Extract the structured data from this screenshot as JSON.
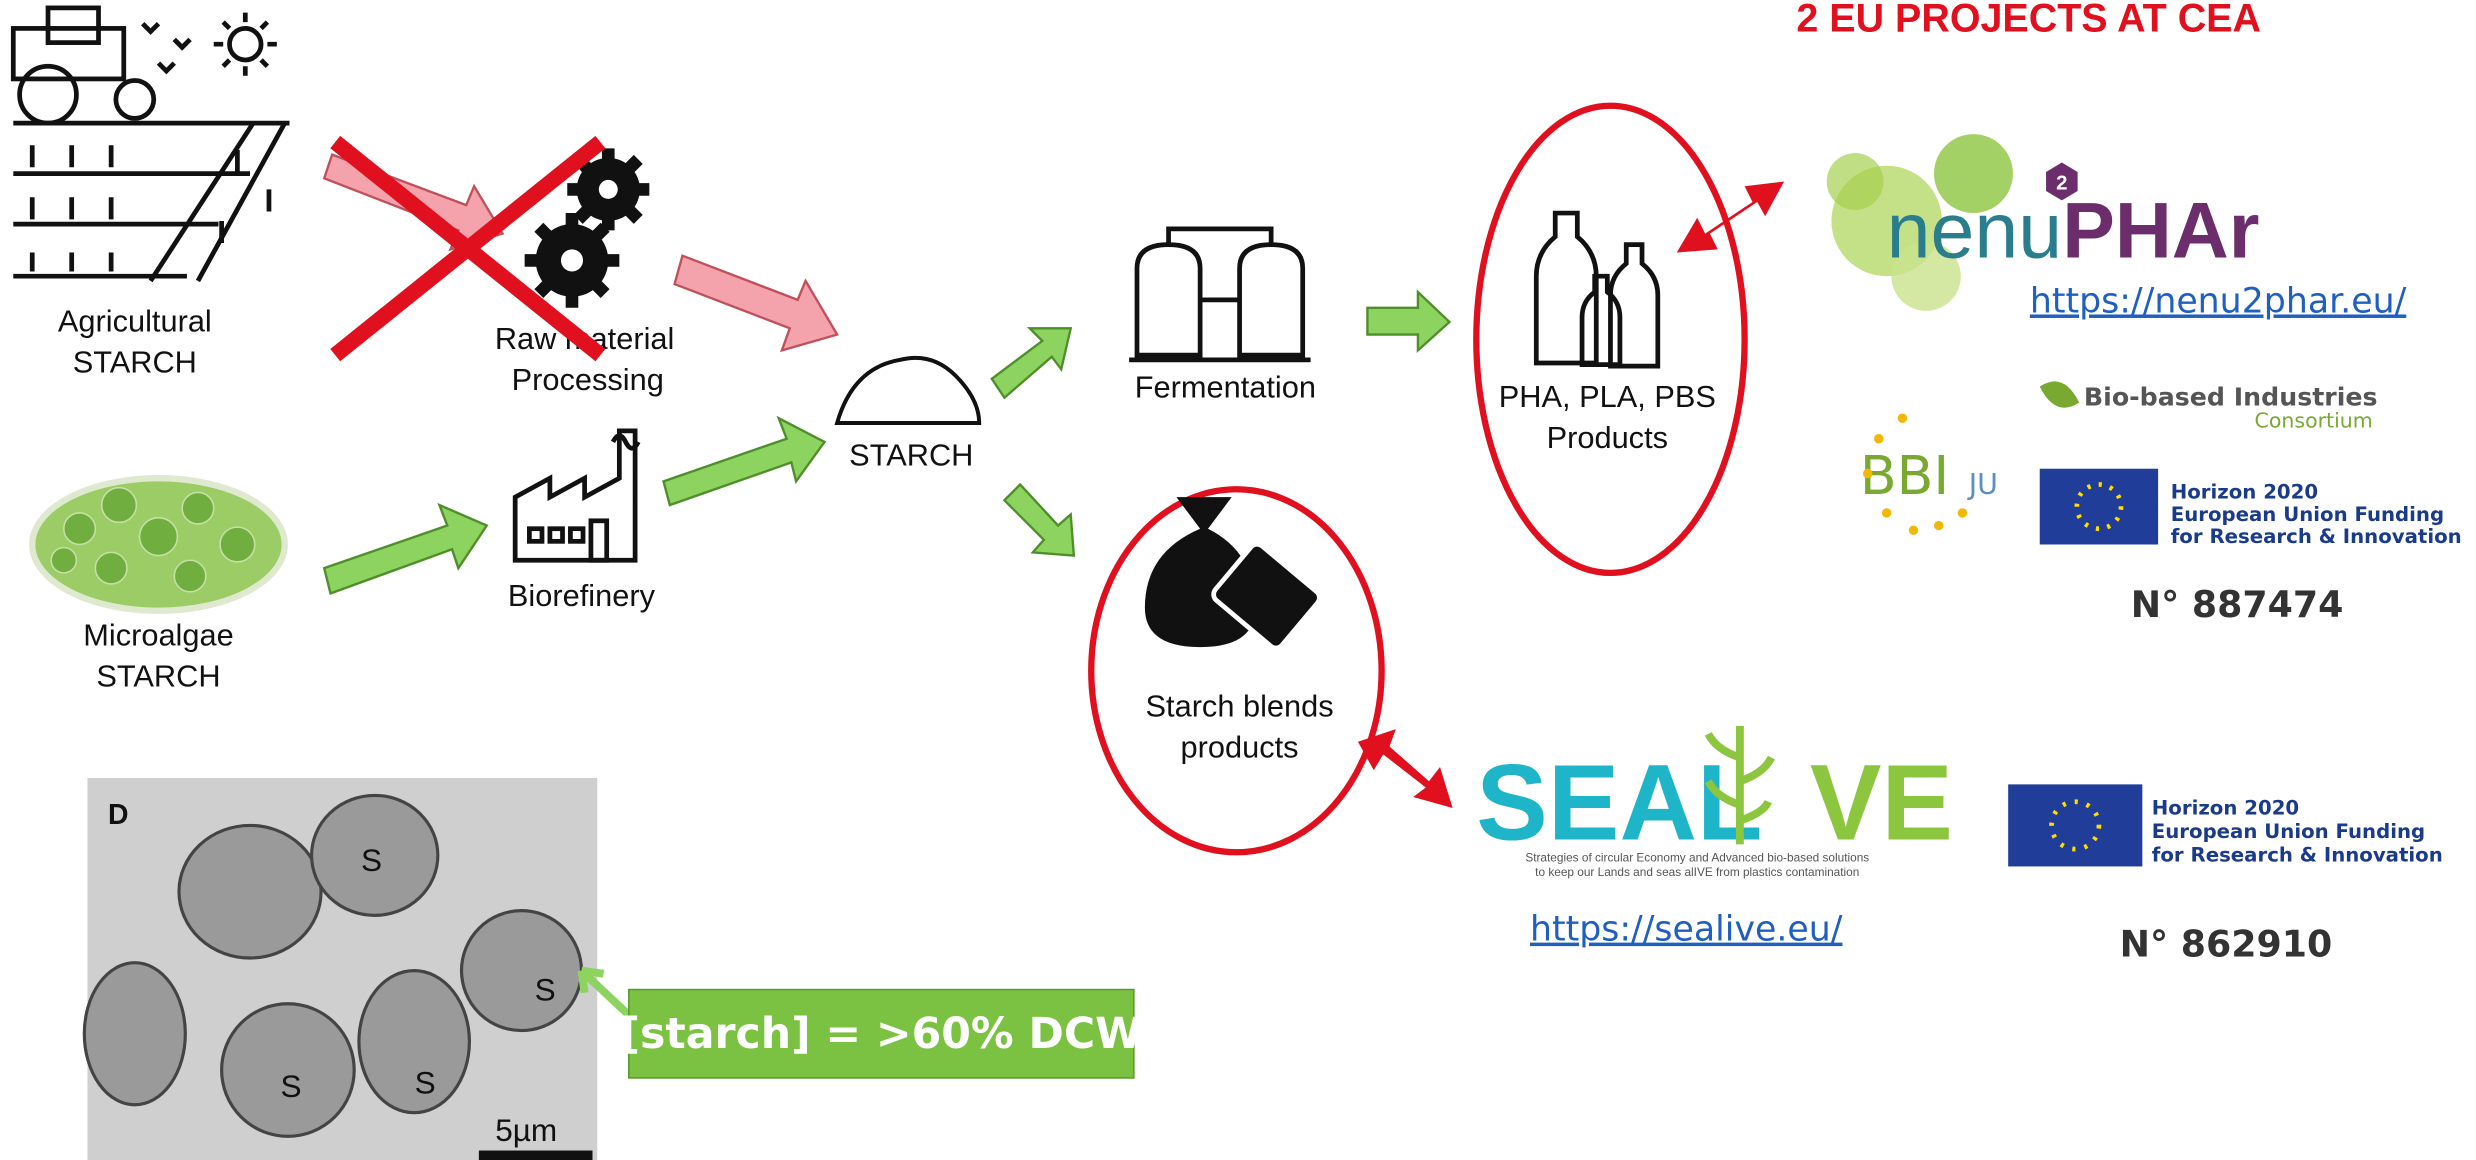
{
  "header": {
    "title": "2 EU PROJECTS AT CEA"
  },
  "nodes": [
    {
      "lines": [
        "Agricultural",
        "STARCH"
      ]
    },
    {
      "lines": [
        "Raw material",
        "Processing"
      ]
    },
    {
      "lines": [
        "Microalgae",
        "STARCH"
      ]
    },
    {
      "lines": [
        "Biorefinery"
      ]
    },
    {
      "lines": [
        "STARCH"
      ]
    },
    {
      "lines": [
        "Fermentation"
      ]
    },
    {
      "lines": [
        "PHA, PLA, PBS",
        "Products"
      ]
    },
    {
      "lines": [
        "Starch blends",
        "products"
      ]
    }
  ],
  "projects": [
    {
      "logo": {
        "number": "2",
        "part1": "nenu",
        "part2": "PHAr"
      },
      "link": "https://nenu2phar.eu/",
      "partners": {
        "bbi": "BBI",
        "ju": "JU",
        "consortium": [
          "Bio-based Industries",
          "Consortium"
        ]
      },
      "funding": [
        "Horizon 2020",
        "European Union Funding",
        "for Research & Innovation"
      ],
      "grant": "N° 887474"
    },
    {
      "logo": {
        "part1": "SEAL",
        "part2": "VE",
        "tagline": [
          "Strategies of circular Economy and Advanced bio-based solutions",
          "to keep our Lands and seas alIVE from plastics contamination"
        ]
      },
      "link": "https://sealive.eu/",
      "funding": [
        "Horizon 2020",
        "European Union Funding",
        "for Research & Innovation"
      ],
      "grant": "N° 862910"
    }
  ],
  "micrograph": {
    "panel": "D",
    "labels": [
      "S",
      "S",
      "S",
      "S"
    ],
    "scale": "5µm",
    "annotation": "[starch] = >60% DCW"
  }
}
